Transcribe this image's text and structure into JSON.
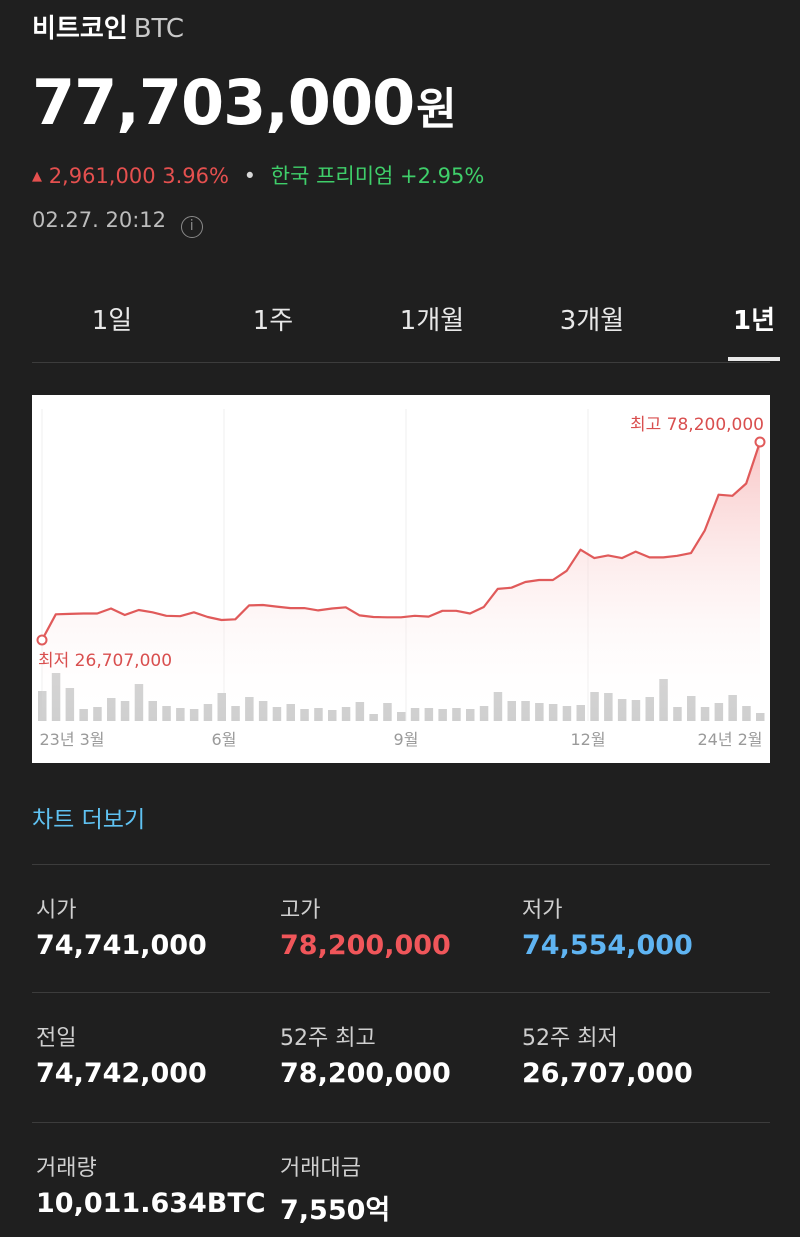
{
  "header": {
    "name": "비트코인",
    "symbol": "BTC",
    "price": "77,703,000",
    "price_unit": "원",
    "change_value": "2,961,000",
    "change_percent": "3.96%",
    "premium_label": "한국 프리미엄 +2.95%",
    "timestamp": "02.27. 20:12",
    "info_icon": "info-icon"
  },
  "tabs": [
    {
      "label": "1일",
      "active": false
    },
    {
      "label": "1주",
      "active": false
    },
    {
      "label": "1개월",
      "active": false
    },
    {
      "label": "3개월",
      "active": false
    },
    {
      "label": "1년",
      "active": true
    }
  ],
  "chart_data": {
    "type": "line",
    "y_unit": "KRW",
    "x_tick_labels": [
      "23년 3월",
      "6월",
      "9월",
      "12월",
      "24년 2월"
    ],
    "high_label": "최고 78,200,000",
    "low_label": "최저 26,707,000",
    "ylim": [
      26707000,
      78200000
    ],
    "values": [
      26707000,
      33400000,
      33500000,
      33600000,
      33600000,
      34900000,
      33200000,
      34500000,
      33900000,
      33000000,
      32900000,
      33900000,
      32700000,
      31900000,
      32100000,
      35700000,
      35800000,
      35400000,
      35000000,
      35000000,
      34400000,
      34900000,
      35200000,
      33100000,
      32700000,
      32600000,
      32600000,
      33000000,
      32800000,
      34300000,
      34300000,
      33600000,
      35300000,
      40000000,
      40300000,
      41800000,
      42300000,
      42300000,
      44700000,
      50200000,
      48000000,
      48700000,
      48000000,
      49700000,
      48200000,
      48200000,
      48600000,
      49300000,
      55200000,
      64500000,
      64200000,
      67400000,
      78200000
    ],
    "volume": [
      30,
      48,
      33,
      12,
      14,
      23,
      20,
      37,
      20,
      15,
      13,
      12,
      17,
      28,
      15,
      24,
      20,
      14,
      17,
      12,
      13,
      11,
      14,
      19,
      7,
      18,
      9,
      13,
      13,
      12,
      13,
      12,
      15,
      29,
      20,
      20,
      18,
      17,
      15,
      16,
      29,
      28,
      22,
      21,
      24,
      42,
      14,
      25,
      14,
      18,
      26,
      15,
      8
    ],
    "line_color": "#e05a5a",
    "volume_color": "#cfcfcf",
    "grid": true
  },
  "more_link": "차트 더보기",
  "stats": [
    {
      "label": "시가",
      "value": "74,741,000",
      "tone": "normal"
    },
    {
      "label": "고가",
      "value": "78,200,000",
      "tone": "high"
    },
    {
      "label": "저가",
      "value": "74,554,000",
      "tone": "low"
    },
    {
      "label": "전일",
      "value": "74,742,000",
      "tone": "normal"
    },
    {
      "label": "52주 최고",
      "value": "78,200,000",
      "tone": "normal"
    },
    {
      "label": "52주 최저",
      "value": "26,707,000",
      "tone": "normal"
    },
    {
      "label": "거래량",
      "value": "10,011.634BTC",
      "tone": "normal"
    },
    {
      "label": "거래대금",
      "value": "7,550억",
      "tone": "normal"
    }
  ]
}
